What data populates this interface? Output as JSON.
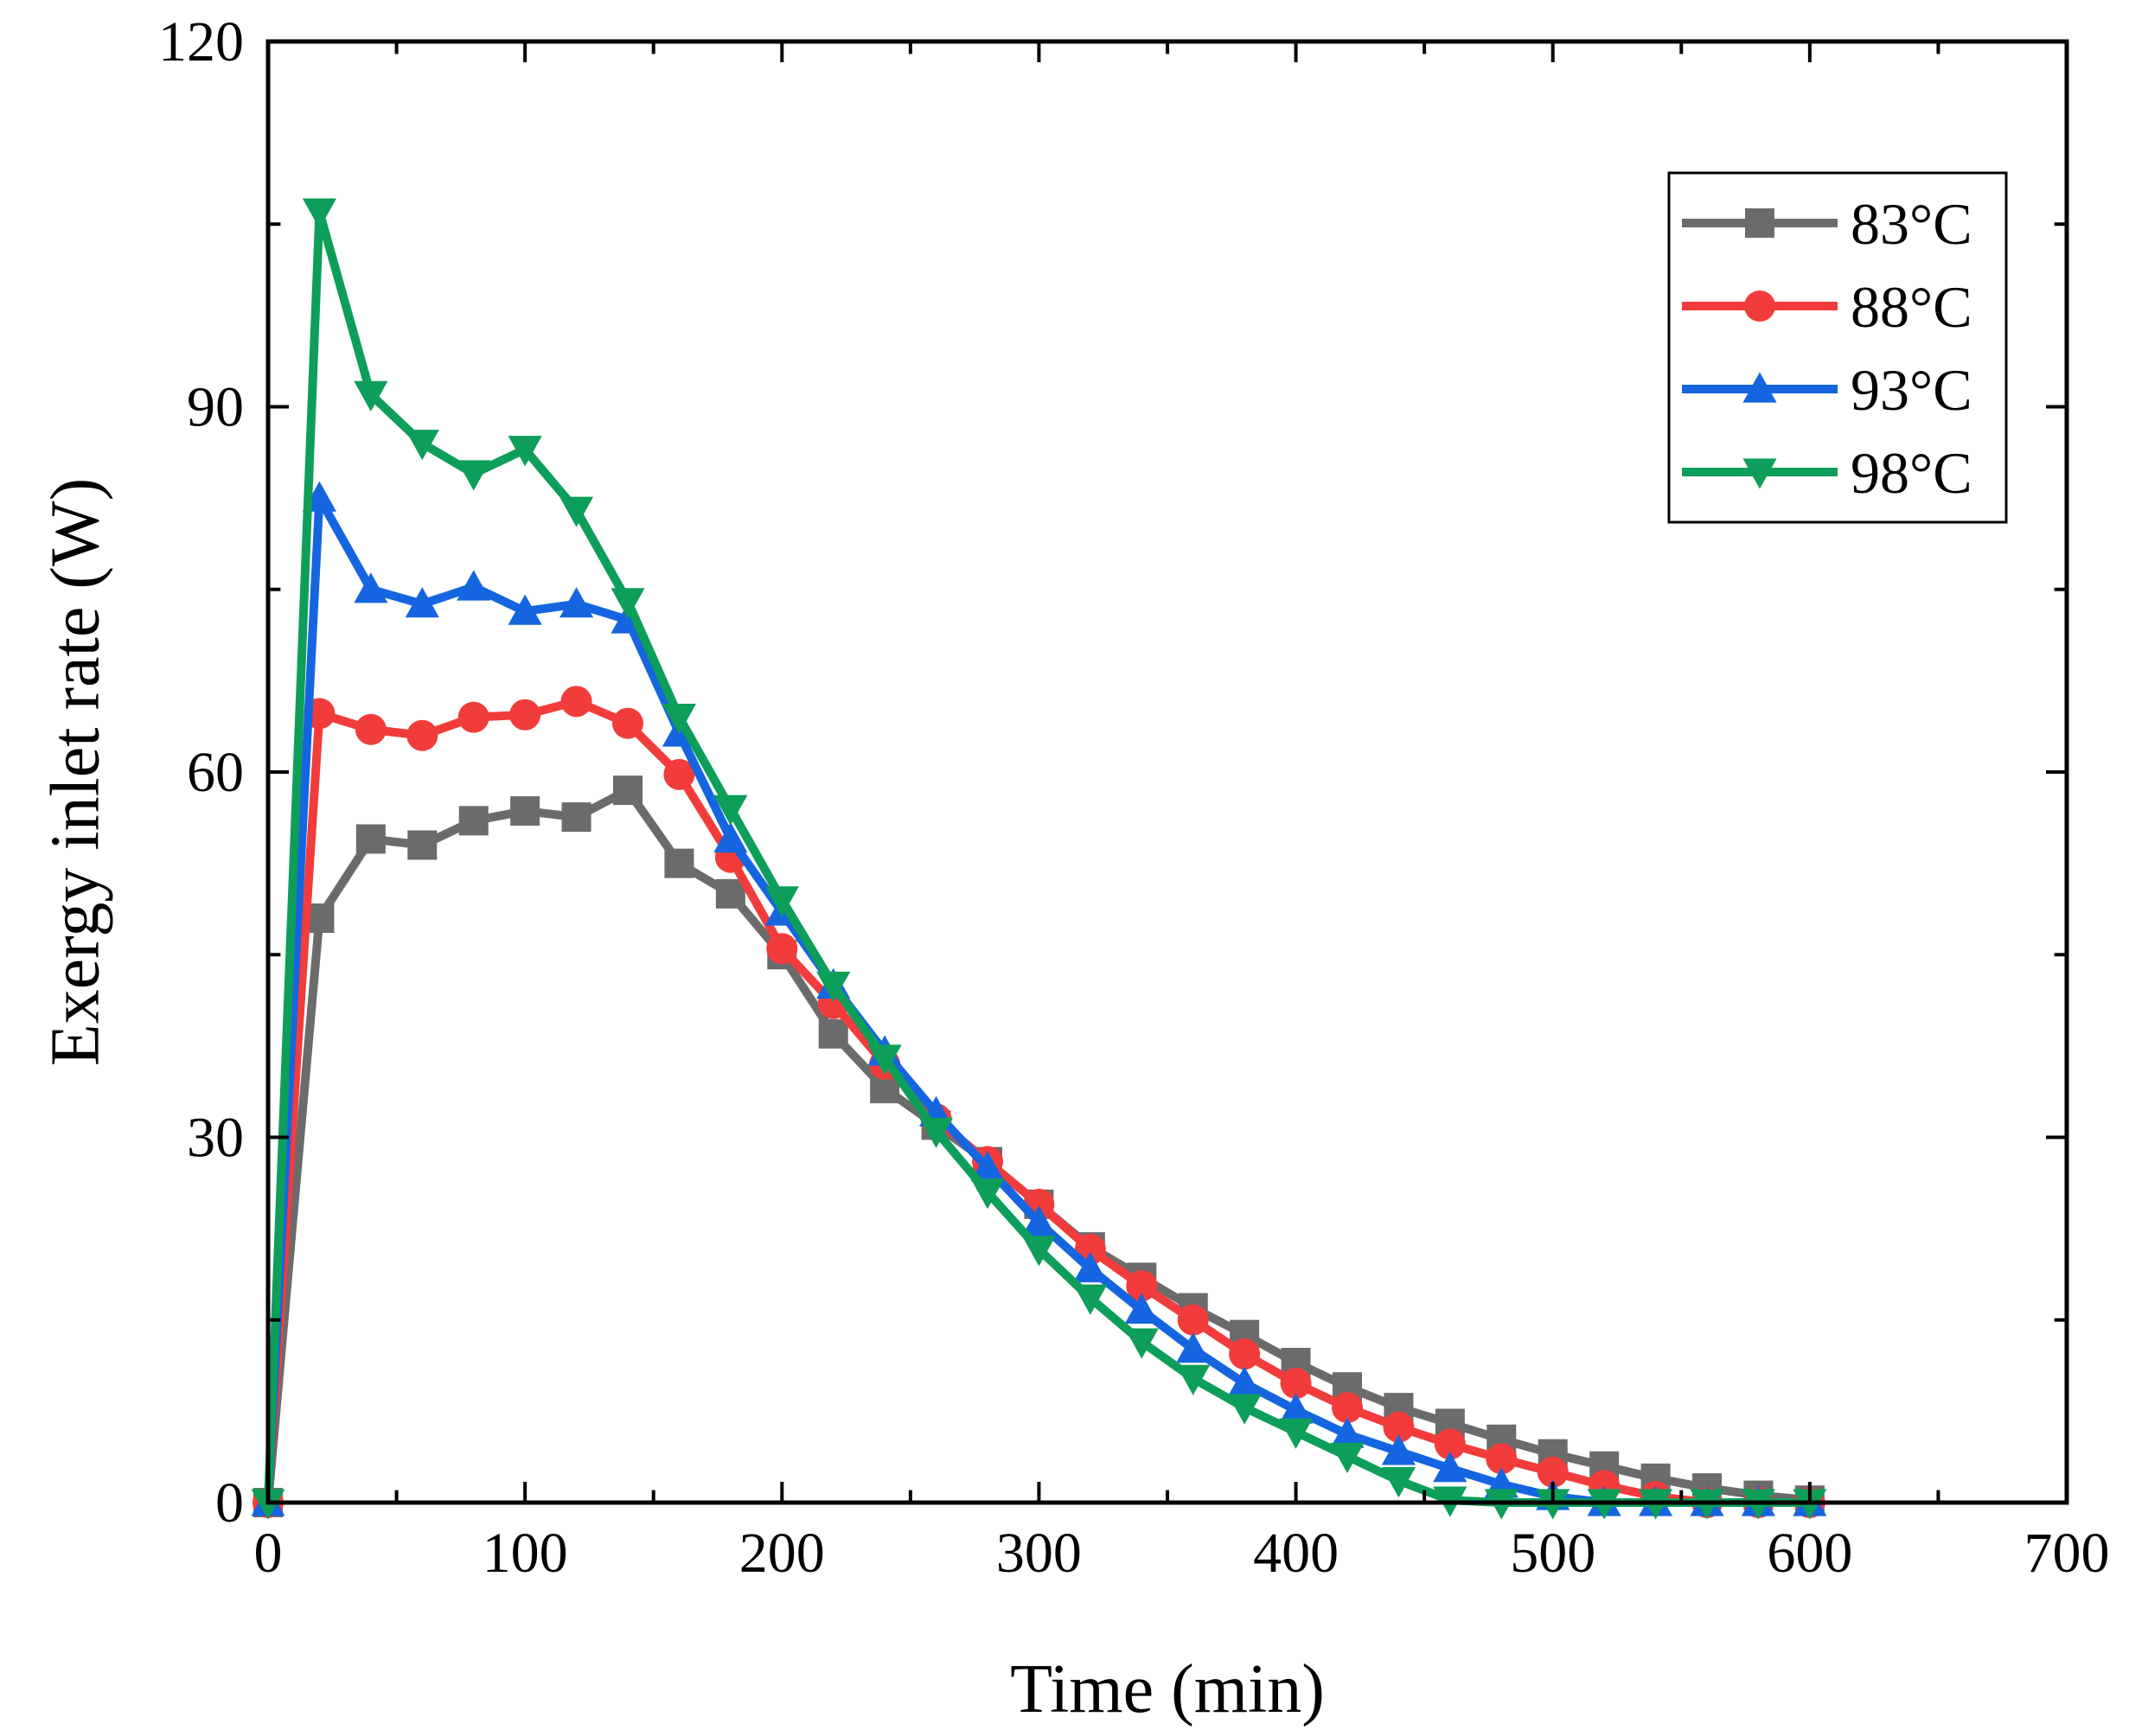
{
  "chart_data": {
    "type": "line",
    "title": "",
    "xlabel": "Time (min)",
    "ylabel": "Exergy inlet rate (W)",
    "xlim": [
      0,
      700
    ],
    "ylim": [
      0,
      120
    ],
    "xticks": [
      0,
      100,
      200,
      300,
      400,
      500,
      600,
      700
    ],
    "yticks": [
      0,
      30,
      60,
      90,
      120
    ],
    "x_tick_labels": [
      "0",
      "100",
      "200",
      "300",
      "400",
      "500",
      "600",
      "700"
    ],
    "y_tick_labels": [
      "0",
      "30",
      "60",
      "90",
      "120"
    ],
    "grid": false,
    "legend_position": "top-right",
    "x": [
      0,
      20,
      40,
      60,
      80,
      100,
      120,
      140,
      160,
      180,
      200,
      220,
      240,
      260,
      280,
      300,
      320,
      340,
      360,
      380,
      400,
      420,
      440,
      460,
      480,
      500,
      520,
      540,
      560,
      580,
      600
    ],
    "series": [
      {
        "name": "83°C",
        "color": "#6b6b6b",
        "marker": "square",
        "values": [
          0,
          48,
          54.5,
          54,
          56,
          56.8,
          56.3,
          58.5,
          52.5,
          50,
          45,
          38.5,
          34,
          31,
          28,
          24.5,
          21,
          18.5,
          16,
          13.8,
          11.5,
          9.5,
          7.8,
          6.5,
          5.2,
          4,
          3,
          2,
          1.2,
          0.6,
          0.2
        ]
      },
      {
        "name": "88°C",
        "color": "#f23c3c",
        "marker": "circle",
        "values": [
          0,
          64.8,
          63.5,
          63,
          64.5,
          64.7,
          65.8,
          64,
          59.8,
          53,
          45.5,
          41,
          36,
          31.5,
          28,
          24.5,
          20.8,
          17.8,
          15,
          12.2,
          9.8,
          7.8,
          6.2,
          4.8,
          3.6,
          2.5,
          1.4,
          0.5,
          0,
          0,
          0
        ]
      },
      {
        "name": "93°C",
        "color": "#1565e0",
        "marker": "triangle-up",
        "values": [
          0,
          82.5,
          75,
          73.8,
          75.2,
          73.2,
          73.8,
          72.5,
          63.2,
          54.5,
          48.5,
          42.5,
          37,
          32,
          27.5,
          23,
          19.2,
          15.8,
          12.6,
          9.8,
          7.6,
          5.6,
          4.2,
          2.8,
          1.5,
          0.5,
          0,
          0,
          0,
          0,
          0
        ]
      },
      {
        "name": "98°C",
        "color": "#0d9e5a",
        "marker": "triangle-down",
        "values": [
          0,
          106,
          91,
          87,
          84.5,
          86.5,
          81.5,
          74,
          64.5,
          57,
          49.5,
          42.5,
          36.5,
          30.5,
          25.5,
          20.8,
          16.8,
          13.2,
          10.2,
          7.8,
          5.8,
          3.8,
          1.8,
          0.2,
          0,
          0,
          0,
          0,
          0,
          0,
          0
        ]
      }
    ]
  }
}
